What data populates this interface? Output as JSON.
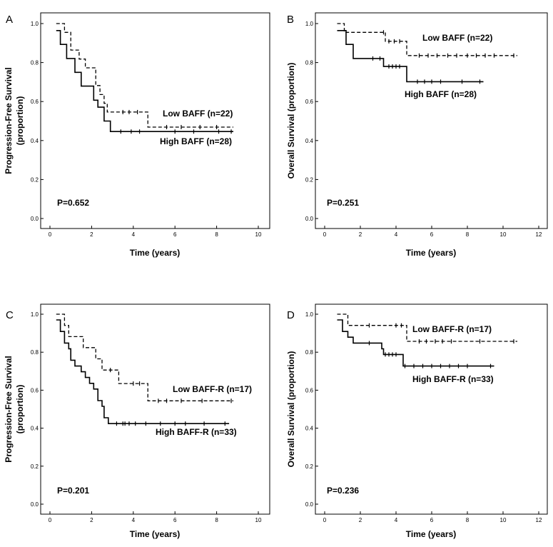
{
  "figure": {
    "description": "Kaplan-Meier survival curves by BAFF and BAFF-R expression"
  },
  "chart_data": [
    {
      "type": "line",
      "panel": "A",
      "ylabel": "Progression-Free Survival (proportion)",
      "ylabel_lines": [
        "Progression-Free Survival",
        "(proportion)"
      ],
      "xlabel": "Time (years)",
      "xlim": [
        0,
        10
      ],
      "xticks": [
        0,
        2,
        4,
        6,
        8,
        10
      ],
      "ylim": [
        0,
        1
      ],
      "yticks": [
        "0.0",
        "0.2",
        "0.4",
        "0.6",
        "0.8",
        "1.0"
      ],
      "p_value": "P=0.652",
      "series": [
        {
          "name": "Low BAFF (n=22)",
          "style": "dashed",
          "steps": [
            [
              0.3,
              1.0
            ],
            [
              0.7,
              0.955
            ],
            [
              1.0,
              0.864
            ],
            [
              1.4,
              0.818
            ],
            [
              1.7,
              0.773
            ],
            [
              2.2,
              0.682
            ],
            [
              2.4,
              0.636
            ],
            [
              2.6,
              0.591
            ],
            [
              2.75,
              0.546
            ],
            [
              4.7,
              0.469
            ],
            [
              8.8,
              0.469
            ]
          ],
          "censors": [
            [
              3.5,
              0.546
            ],
            [
              3.8,
              0.546
            ],
            [
              4.2,
              0.546
            ],
            [
              5.6,
              0.469
            ],
            [
              6.3,
              0.469
            ],
            [
              7.2,
              0.469
            ],
            [
              8.0,
              0.469
            ]
          ]
        },
        {
          "name": "High BAFF (n=28)",
          "style": "solid",
          "steps": [
            [
              0.3,
              0.964
            ],
            [
              0.5,
              0.893
            ],
            [
              0.8,
              0.821
            ],
            [
              1.2,
              0.75
            ],
            [
              1.5,
              0.679
            ],
            [
              2.1,
              0.607
            ],
            [
              2.3,
              0.571
            ],
            [
              2.6,
              0.5
            ],
            [
              2.9,
              0.446
            ],
            [
              8.8,
              0.446
            ]
          ],
          "censors": [
            [
              3.4,
              0.446
            ],
            [
              3.9,
              0.446
            ],
            [
              4.3,
              0.446
            ],
            [
              6.0,
              0.446
            ],
            [
              6.9,
              0.446
            ],
            [
              8.1,
              0.446
            ],
            [
              8.7,
              0.446
            ]
          ]
        }
      ]
    },
    {
      "type": "line",
      "panel": "B",
      "ylabel": "Overall Survival (proportion)",
      "ylabel_lines": [
        "Overall Survival (proportion)"
      ],
      "xlabel": "Time (years)",
      "xlim": [
        0,
        12
      ],
      "xticks": [
        0,
        2,
        4,
        6,
        8,
        10,
        12
      ],
      "ylim": [
        0,
        1
      ],
      "yticks": [
        "0.0",
        "0.2",
        "0.4",
        "0.6",
        "0.8",
        "1.0"
      ],
      "p_value": "P=0.251",
      "series": [
        {
          "name": "Low BAFF (n=22)",
          "style": "dashed",
          "steps": [
            [
              0.7,
              1.0
            ],
            [
              1.1,
              0.955
            ],
            [
              3.4,
              0.909
            ],
            [
              4.6,
              0.836
            ],
            [
              10.8,
              0.836
            ]
          ],
          "censors": [
            [
              3.3,
              0.955
            ],
            [
              3.6,
              0.909
            ],
            [
              3.9,
              0.909
            ],
            [
              4.2,
              0.909
            ],
            [
              5.3,
              0.836
            ],
            [
              5.8,
              0.836
            ],
            [
              6.3,
              0.836
            ],
            [
              6.9,
              0.836
            ],
            [
              7.4,
              0.836
            ],
            [
              8.0,
              0.836
            ],
            [
              8.5,
              0.836
            ],
            [
              9.0,
              0.836
            ],
            [
              9.5,
              0.836
            ],
            [
              10.6,
              0.836
            ]
          ]
        },
        {
          "name": "High BAFF (n=28)",
          "style": "solid",
          "steps": [
            [
              0.7,
              0.964
            ],
            [
              1.2,
              0.893
            ],
            [
              1.6,
              0.821
            ],
            [
              3.3,
              0.78
            ],
            [
              4.6,
              0.702
            ],
            [
              8.9,
              0.702
            ]
          ],
          "censors": [
            [
              2.7,
              0.821
            ],
            [
              3.1,
              0.821
            ],
            [
              3.6,
              0.78
            ],
            [
              3.8,
              0.78
            ],
            [
              4.0,
              0.78
            ],
            [
              4.2,
              0.78
            ],
            [
              5.2,
              0.702
            ],
            [
              5.6,
              0.702
            ],
            [
              6.0,
              0.702
            ],
            [
              6.5,
              0.702
            ],
            [
              7.7,
              0.702
            ],
            [
              8.7,
              0.702
            ]
          ]
        }
      ]
    },
    {
      "type": "line",
      "panel": "C",
      "ylabel": "Progression-Free Survival (proportion)",
      "ylabel_lines": [
        "Progression-Free Survival",
        "(proportion)"
      ],
      "xlabel": "Time (years)",
      "xlim": [
        0,
        10
      ],
      "xticks": [
        0,
        2,
        4,
        6,
        8,
        10
      ],
      "ylim": [
        0,
        1
      ],
      "yticks": [
        "0.0",
        "0.2",
        "0.4",
        "0.6",
        "0.8",
        "1.0"
      ],
      "p_value": "P=0.201",
      "series": [
        {
          "name": "Low BAFF-R (n=17)",
          "style": "dashed",
          "steps": [
            [
              0.3,
              1.0
            ],
            [
              0.7,
              0.941
            ],
            [
              0.9,
              0.882
            ],
            [
              1.6,
              0.824
            ],
            [
              2.2,
              0.765
            ],
            [
              2.5,
              0.706
            ],
            [
              3.3,
              0.635
            ],
            [
              4.7,
              0.544
            ],
            [
              8.8,
              0.544
            ]
          ],
          "censors": [
            [
              2.9,
              0.706
            ],
            [
              4.0,
              0.635
            ],
            [
              4.3,
              0.635
            ],
            [
              5.2,
              0.544
            ],
            [
              5.6,
              0.544
            ],
            [
              6.3,
              0.544
            ],
            [
              7.3,
              0.544
            ],
            [
              8.7,
              0.544
            ]
          ]
        },
        {
          "name": "High BAFF-R (n=33)",
          "style": "solid",
          "steps": [
            [
              0.3,
              0.97
            ],
            [
              0.5,
              0.909
            ],
            [
              0.7,
              0.848
            ],
            [
              0.9,
              0.818
            ],
            [
              1.0,
              0.758
            ],
            [
              1.2,
              0.727
            ],
            [
              1.5,
              0.697
            ],
            [
              1.7,
              0.667
            ],
            [
              1.9,
              0.636
            ],
            [
              2.1,
              0.606
            ],
            [
              2.3,
              0.545
            ],
            [
              2.5,
              0.515
            ],
            [
              2.6,
              0.455
            ],
            [
              2.8,
              0.424
            ],
            [
              8.6,
              0.424
            ]
          ],
          "censors": [
            [
              3.2,
              0.424
            ],
            [
              3.5,
              0.424
            ],
            [
              3.6,
              0.424
            ],
            [
              3.8,
              0.424
            ],
            [
              4.1,
              0.424
            ],
            [
              4.6,
              0.424
            ],
            [
              5.3,
              0.424
            ],
            [
              6.0,
              0.424
            ],
            [
              6.5,
              0.424
            ],
            [
              7.4,
              0.424
            ],
            [
              8.4,
              0.424
            ]
          ]
        }
      ]
    },
    {
      "type": "line",
      "panel": "D",
      "ylabel": "Overall Survival (proportion)",
      "ylabel_lines": [
        "Overall Survival (proportion)"
      ],
      "xlabel": "Time (years)",
      "xlim": [
        0,
        12
      ],
      "xticks": [
        0,
        2,
        4,
        6,
        8,
        10,
        12
      ],
      "ylim": [
        0,
        1
      ],
      "yticks": [
        "0.0",
        "0.2",
        "0.4",
        "0.6",
        "0.8",
        "1.0"
      ],
      "p_value": "P=0.236",
      "series": [
        {
          "name": "Low BAFF-R (n=17)",
          "style": "dashed",
          "steps": [
            [
              0.7,
              1.0
            ],
            [
              1.3,
              0.941
            ],
            [
              4.6,
              0.857
            ],
            [
              10.8,
              0.857
            ]
          ],
          "censors": [
            [
              2.5,
              0.941
            ],
            [
              4.0,
              0.941
            ],
            [
              4.3,
              0.941
            ],
            [
              5.3,
              0.857
            ],
            [
              5.7,
              0.857
            ],
            [
              6.2,
              0.857
            ],
            [
              6.6,
              0.857
            ],
            [
              7.1,
              0.857
            ],
            [
              8.7,
              0.857
            ],
            [
              10.6,
              0.857
            ]
          ]
        },
        {
          "name": "High BAFF-R (n=33)",
          "style": "solid",
          "steps": [
            [
              0.7,
              0.97
            ],
            [
              1.0,
              0.909
            ],
            [
              1.3,
              0.879
            ],
            [
              1.6,
              0.848
            ],
            [
              3.2,
              0.818
            ],
            [
              3.3,
              0.788
            ],
            [
              4.4,
              0.727
            ],
            [
              9.5,
              0.727
            ]
          ],
          "censors": [
            [
              2.5,
              0.848
            ],
            [
              3.4,
              0.788
            ],
            [
              3.6,
              0.788
            ],
            [
              3.8,
              0.788
            ],
            [
              4.0,
              0.788
            ],
            [
              4.5,
              0.727
            ],
            [
              5.0,
              0.727
            ],
            [
              5.5,
              0.727
            ],
            [
              6.0,
              0.727
            ],
            [
              6.5,
              0.727
            ],
            [
              7.0,
              0.727
            ],
            [
              7.5,
              0.727
            ],
            [
              8.0,
              0.727
            ],
            [
              9.3,
              0.727
            ]
          ]
        }
      ]
    }
  ]
}
